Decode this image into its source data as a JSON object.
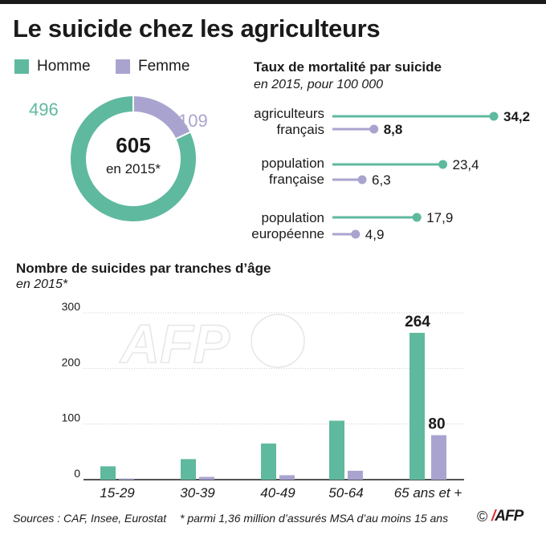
{
  "title": "Le suicide chez les agriculteurs",
  "legend": [
    {
      "label": "Homme",
      "color": "#5fb99f"
    },
    {
      "label": "Femme",
      "color": "#a9a4cf"
    }
  ],
  "donut": {
    "total": "605",
    "total_sub": "en 2015*",
    "homme": 496,
    "femme": 109,
    "homme_label": "496",
    "femme_label": "109"
  },
  "rates": {
    "title": "Taux de mortalité par suicide",
    "subtitle": "en 2015, pour 100 000",
    "max": 34.2,
    "rows": [
      {
        "label_l1": "agriculteurs",
        "label_l2": "français",
        "homme": 34.2,
        "femme": 8.8,
        "homme_label": "34,2",
        "femme_label": "8,8",
        "bold": true
      },
      {
        "label_l1": "population",
        "label_l2": "française",
        "homme": 23.4,
        "femme": 6.3,
        "homme_label": "23,4",
        "femme_label": "6,3",
        "bold": false
      },
      {
        "label_l1": "population",
        "label_l2": "européenne",
        "homme": 17.9,
        "femme": 4.9,
        "homme_label": "17,9",
        "femme_label": "4,9",
        "bold": false
      }
    ]
  },
  "age_chart_text": {
    "title": "Nombre de suicides par tranches d’âge",
    "subtitle": "en 2015*"
  },
  "chart_data": {
    "type": "bar",
    "title": "Nombre de suicides par tranches d’âge",
    "subtitle": "en 2015*",
    "categories": [
      "15-29",
      "30-39",
      "40-49",
      "50-64",
      "65 ans et +"
    ],
    "series": [
      {
        "name": "Homme",
        "values": [
          24,
          37,
          65,
          106,
          264
        ],
        "color": "#5fb99f"
      },
      {
        "name": "Femme",
        "values": [
          2,
          5,
          8,
          16,
          80
        ],
        "color": "#a9a4cf"
      }
    ],
    "ylim": [
      0,
      300
    ],
    "yticks": [
      0,
      100,
      200,
      300
    ],
    "data_labels": {
      "homme_264": "264",
      "femme_80": "80"
    },
    "grid": true
  },
  "watermark": "AFP",
  "footer": {
    "sources": "Sources : CAF, Insee, Eurostat",
    "note": "* parmi 1,36 million d’assurés MSA d’au moins 15 ans",
    "copyright": "©",
    "logo": "AFP"
  }
}
